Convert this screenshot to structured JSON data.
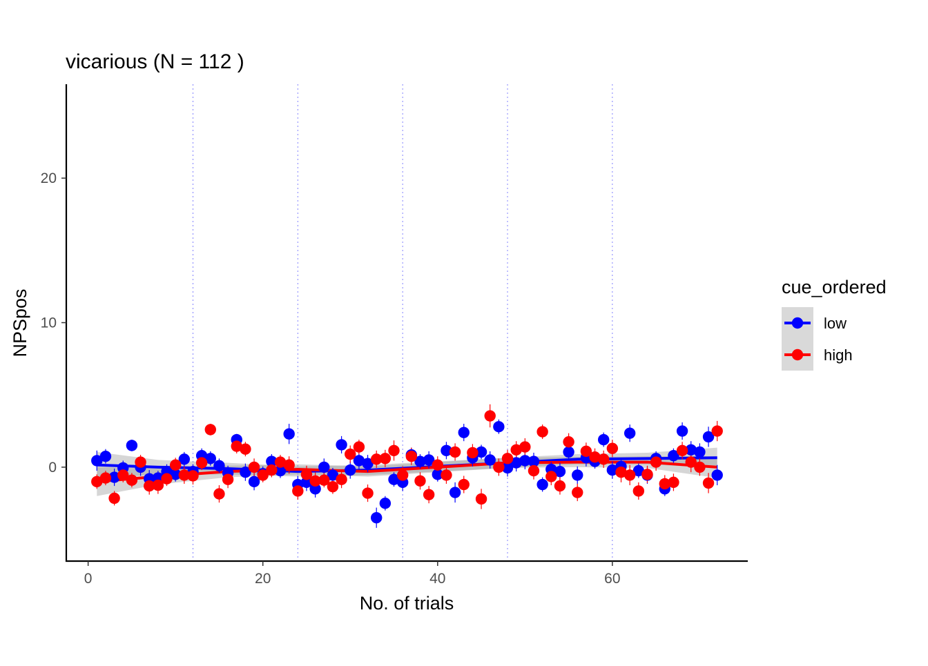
{
  "chart_data": {
    "type": "scatter",
    "title": "vicarious (N =  112 )",
    "xlabel": "No. of trials",
    "ylabel": "NPSpos",
    "xlim": [
      -2.5,
      75.5
    ],
    "ylim": [
      -6.5,
      26.5
    ],
    "x_ticks": [
      0,
      20,
      40,
      60
    ],
    "y_ticks": [
      0,
      10,
      20
    ],
    "x_tick_labels": [
      "0",
      "20",
      "40",
      "60"
    ],
    "y_tick_labels": [
      "0",
      "10",
      "20"
    ],
    "vlines": [
      12,
      24,
      36,
      48,
      60
    ],
    "grid": false,
    "legend": {
      "title": "cue_ordered",
      "position": "right"
    },
    "series": [
      {
        "name": "low",
        "color": "#0000FF",
        "x": [
          1,
          2,
          3,
          4,
          5,
          6,
          7,
          8,
          9,
          10,
          11,
          12,
          13,
          14,
          15,
          16,
          17,
          18,
          19,
          20,
          21,
          22,
          23,
          24,
          25,
          26,
          27,
          28,
          29,
          30,
          31,
          32,
          33,
          34,
          35,
          36,
          37,
          38,
          39,
          40,
          41,
          42,
          43,
          44,
          45,
          46,
          47,
          48,
          49,
          50,
          51,
          52,
          53,
          54,
          55,
          56,
          57,
          58,
          59,
          60,
          61,
          62,
          63,
          64,
          65,
          66,
          67,
          68,
          69,
          70,
          71,
          72
        ],
        "y": [
          0.45,
          0.75,
          -0.7,
          -0.05,
          1.5,
          0.0,
          -0.8,
          -0.75,
          -0.3,
          -0.5,
          0.55,
          -0.3,
          0.8,
          0.6,
          0.1,
          -0.4,
          1.9,
          -0.35,
          -1.0,
          -0.45,
          0.4,
          -0.25,
          2.3,
          -1.2,
          -1.05,
          -1.5,
          0.0,
          -0.55,
          1.55,
          -0.2,
          0.45,
          0.25,
          -3.5,
          -2.5,
          -0.85,
          -1.05,
          0.85,
          0.4,
          0.5,
          -0.5,
          1.15,
          -1.75,
          2.4,
          0.65,
          1.05,
          0.5,
          2.8,
          -0.05,
          0.3,
          0.45,
          0.4,
          -1.2,
          -0.15,
          -0.3,
          1.05,
          -0.55,
          0.65,
          0.4,
          1.9,
          -0.2,
          0.05,
          2.35,
          -0.25,
          -0.55,
          0.6,
          -1.5,
          0.8,
          2.5,
          1.2,
          1.05,
          2.1,
          -0.55
        ],
        "err": [
          0.7,
          0.5,
          0.6,
          0.5,
          0.4,
          0.6,
          0.6,
          0.5,
          0.5,
          0.5,
          0.5,
          0.5,
          0.5,
          0.5,
          0.5,
          0.5,
          0.4,
          0.6,
          0.6,
          0.5,
          0.5,
          0.5,
          0.7,
          0.6,
          0.6,
          0.6,
          0.6,
          0.5,
          0.6,
          0.6,
          0.6,
          0.6,
          0.7,
          0.5,
          0.5,
          0.6,
          0.5,
          0.5,
          0.6,
          0.5,
          0.6,
          0.7,
          0.6,
          0.6,
          0.5,
          0.6,
          0.5,
          0.6,
          0.6,
          0.6,
          0.6,
          0.5,
          0.5,
          0.6,
          0.5,
          0.6,
          0.6,
          0.5,
          0.5,
          0.6,
          0.6,
          0.6,
          0.5,
          0.6,
          0.5,
          0.5,
          0.5,
          0.6,
          0.6,
          0.6,
          0.7,
          0.7
        ],
        "trend": {
          "x": [
            1,
            8,
            16,
            24,
            32,
            40,
            48,
            56,
            64,
            72
          ],
          "y": [
            0.15,
            0.0,
            -0.1,
            -0.3,
            -0.2,
            0.05,
            0.3,
            0.55,
            0.6,
            0.65
          ],
          "band": [
            0.9,
            0.5,
            0.4,
            0.35,
            0.35,
            0.35,
            0.35,
            0.35,
            0.4,
            0.7
          ]
        }
      },
      {
        "name": "high",
        "color": "#FF0000",
        "x": [
          1,
          2,
          3,
          4,
          5,
          6,
          7,
          8,
          9,
          10,
          11,
          12,
          13,
          14,
          15,
          16,
          17,
          18,
          19,
          20,
          21,
          22,
          23,
          24,
          25,
          26,
          27,
          28,
          29,
          30,
          31,
          32,
          33,
          34,
          35,
          36,
          37,
          38,
          39,
          40,
          41,
          42,
          43,
          44,
          45,
          46,
          47,
          48,
          49,
          50,
          51,
          52,
          53,
          54,
          55,
          56,
          57,
          58,
          59,
          60,
          61,
          62,
          63,
          64,
          65,
          66,
          67,
          68,
          69,
          70,
          71,
          72
        ],
        "y": [
          -1.0,
          -0.75,
          -2.15,
          -0.55,
          -0.9,
          0.35,
          -1.3,
          -1.25,
          -0.8,
          0.15,
          -0.55,
          -0.6,
          0.3,
          2.6,
          -1.85,
          -0.85,
          1.45,
          1.25,
          0.0,
          -0.55,
          -0.2,
          0.35,
          0.15,
          -1.65,
          -0.5,
          -0.95,
          -0.9,
          -1.35,
          -0.85,
          0.9,
          1.4,
          -1.8,
          0.55,
          0.6,
          1.15,
          -0.55,
          0.75,
          -0.95,
          -1.9,
          0.15,
          -0.55,
          1.05,
          -1.2,
          1.0,
          -2.2,
          3.55,
          0.0,
          0.6,
          1.2,
          1.4,
          -0.25,
          2.45,
          -0.65,
          -1.3,
          1.75,
          -1.75,
          1.1,
          0.7,
          0.55,
          1.3,
          -0.35,
          -0.55,
          -1.65,
          -0.5,
          0.35,
          -1.15,
          -1.05,
          1.15,
          0.35,
          0.0,
          -1.1,
          2.5
        ],
        "err": [
          0.5,
          0.5,
          0.5,
          0.5,
          0.5,
          0.5,
          0.6,
          0.6,
          0.5,
          0.5,
          0.6,
          0.6,
          0.5,
          0.4,
          0.6,
          0.6,
          0.5,
          0.5,
          0.6,
          0.5,
          0.5,
          0.5,
          0.6,
          0.6,
          0.6,
          0.6,
          0.5,
          0.5,
          0.6,
          0.6,
          0.5,
          0.6,
          0.6,
          0.6,
          0.7,
          0.6,
          0.6,
          0.6,
          0.6,
          0.6,
          0.6,
          0.6,
          0.6,
          0.6,
          0.7,
          0.8,
          0.6,
          0.6,
          0.6,
          0.6,
          0.6,
          0.5,
          0.6,
          0.6,
          0.6,
          0.6,
          0.6,
          0.6,
          0.6,
          0.6,
          0.7,
          0.7,
          0.6,
          0.6,
          0.6,
          0.6,
          0.6,
          0.6,
          0.7,
          0.6,
          0.7,
          0.7
        ],
        "trend": {
          "x": [
            1,
            8,
            16,
            24,
            32,
            40,
            48,
            56,
            64,
            72
          ],
          "y": [
            -1.0,
            -0.65,
            -0.3,
            -0.15,
            -0.3,
            0.0,
            0.3,
            0.35,
            0.35,
            0.0
          ],
          "band": [
            1.0,
            0.55,
            0.4,
            0.35,
            0.35,
            0.35,
            0.35,
            0.35,
            0.4,
            0.75
          ]
        }
      }
    ]
  }
}
